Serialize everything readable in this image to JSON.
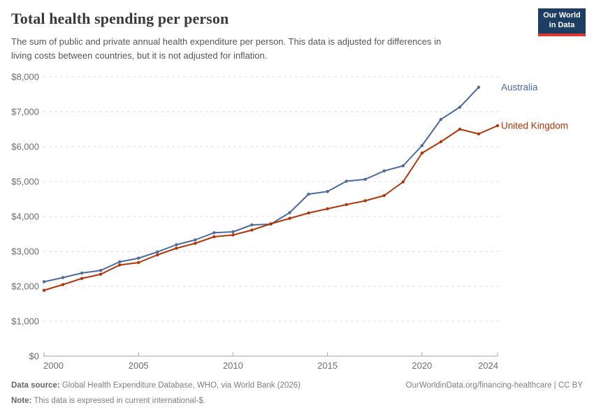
{
  "header": {
    "title": "Total health spending per person",
    "subtitle_lines": [
      "The sum of public and private annual health expenditure per person. This data is adjusted for differences in",
      "living costs between countries, but it is not adjusted for inflation."
    ],
    "logo": {
      "line1": "Our World",
      "line2": "in Data",
      "bg_color": "#1d3d63",
      "bar_color": "#dc3a30"
    }
  },
  "chart_data": {
    "type": "line",
    "title": "Total health spending per person",
    "xlabel": "",
    "ylabel": "",
    "xlim": [
      2000,
      2024
    ],
    "ylim": [
      0,
      8000
    ],
    "grid": "horizontal-dashed",
    "legend_position": "labels-at-line-ends-right",
    "xticks": [
      2000,
      2005,
      2010,
      2015,
      2020,
      2024
    ],
    "yticks": [
      0,
      1000,
      2000,
      3000,
      4000,
      5000,
      6000,
      7000,
      8000
    ],
    "ytick_labels": [
      "$0",
      "$1,000",
      "$2,000",
      "$3,000",
      "$4,000",
      "$5,000",
      "$6,000",
      "$7,000",
      "$8,000"
    ],
    "series": [
      {
        "name": "Australia",
        "color": "#4C6A9C",
        "years": [
          2000,
          2001,
          2002,
          2003,
          2004,
          2005,
          2006,
          2007,
          2008,
          2009,
          2010,
          2011,
          2012,
          2013,
          2014,
          2015,
          2016,
          2017,
          2018,
          2019,
          2020,
          2021,
          2022,
          2023
        ],
        "values": [
          2130,
          2250,
          2380,
          2455,
          2700,
          2805,
          2985,
          3190,
          3330,
          3535,
          3560,
          3760,
          3780,
          4110,
          4640,
          4715,
          5010,
          5065,
          5305,
          5450,
          6030,
          6780,
          7130,
          7700
        ]
      },
      {
        "name": "United Kingdom",
        "color": "#B13507",
        "years": [
          2000,
          2001,
          2002,
          2003,
          2004,
          2005,
          2006,
          2007,
          2008,
          2009,
          2010,
          2011,
          2012,
          2013,
          2014,
          2015,
          2016,
          2017,
          2018,
          2019,
          2020,
          2021,
          2022,
          2023,
          2024
        ],
        "values": [
          1885,
          2050,
          2225,
          2345,
          2610,
          2680,
          2900,
          3090,
          3230,
          3420,
          3470,
          3610,
          3790,
          3945,
          4100,
          4220,
          4340,
          4450,
          4600,
          4990,
          5815,
          6140,
          6500,
          6365,
          6600
        ]
      }
    ]
  },
  "footer": {
    "datasource_label": "Data source:",
    "datasource_text": " Global Health Expenditure Database, WHO, via World Bank (2026)",
    "note_label": "Note:",
    "note_text": " This data is expressed in current international-$.",
    "link": "OurWorldinData.org/financing-healthcare | CC BY"
  }
}
